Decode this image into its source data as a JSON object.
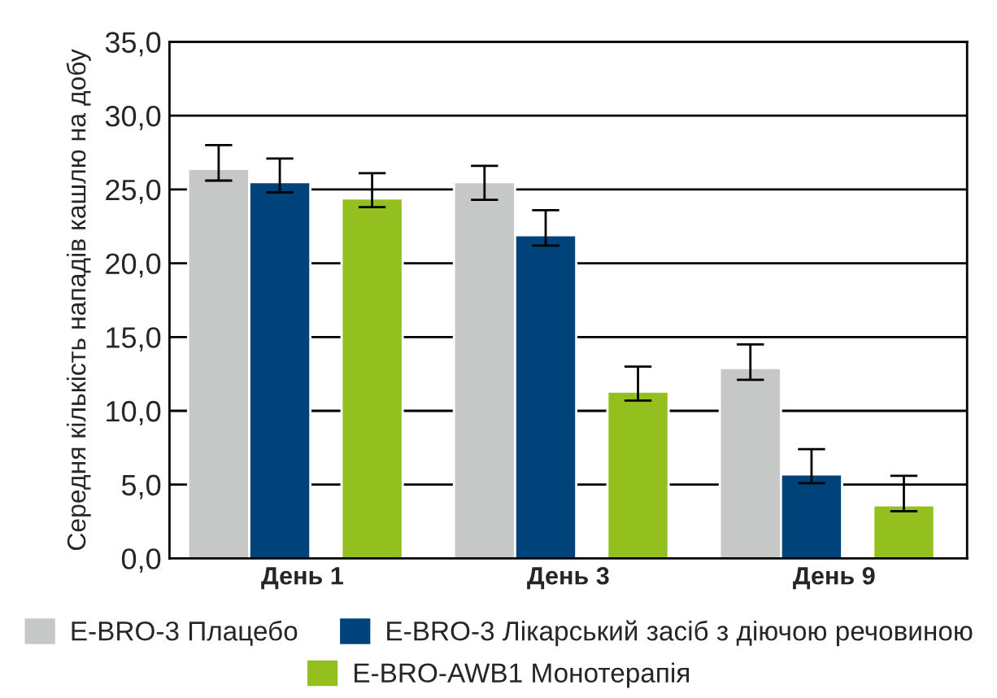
{
  "chart_data": {
    "type": "bar",
    "ylabel": "Середня кількість нападів кашлю на добу",
    "categories": [
      "День 1",
      "День 3",
      "День 9"
    ],
    "series": [
      {
        "name": "E-BRO-3 Плацебо",
        "color": "#c6c7c7",
        "values": [
          26.4,
          25.5,
          12.9
        ],
        "errors": [
          [
            25.6,
            28.0
          ],
          [
            24.3,
            26.6
          ],
          [
            12.1,
            14.5
          ]
        ]
      },
      {
        "name": "E-BRO-3 Лікарський засіб з діючою речовиною",
        "color": "#00427a",
        "values": [
          25.5,
          21.9,
          5.7
        ],
        "errors": [
          [
            24.8,
            27.1
          ],
          [
            21.2,
            23.6
          ],
          [
            5.1,
            7.4
          ]
        ]
      },
      {
        "name": "E-BRO-AWB1 Монотерапія",
        "color": "#93c01f",
        "values": [
          24.4,
          11.3,
          3.6
        ],
        "errors": [
          [
            23.8,
            26.1
          ],
          [
            10.7,
            13.0
          ],
          [
            3.2,
            5.6
          ]
        ]
      }
    ],
    "ylim": [
      0,
      35
    ],
    "yticks": [
      {
        "value": 0,
        "label": "0,0"
      },
      {
        "value": 5,
        "label": "5,0"
      },
      {
        "value": 10,
        "label": "10,0"
      },
      {
        "value": 15,
        "label": "15,0"
      },
      {
        "value": 20,
        "label": "20,0"
      },
      {
        "value": 25,
        "label": "25,0"
      },
      {
        "value": 30,
        "label": "30,0"
      },
      {
        "value": 35,
        "label": "35,0"
      }
    ],
    "grid": "y",
    "legend": "bottom"
  }
}
